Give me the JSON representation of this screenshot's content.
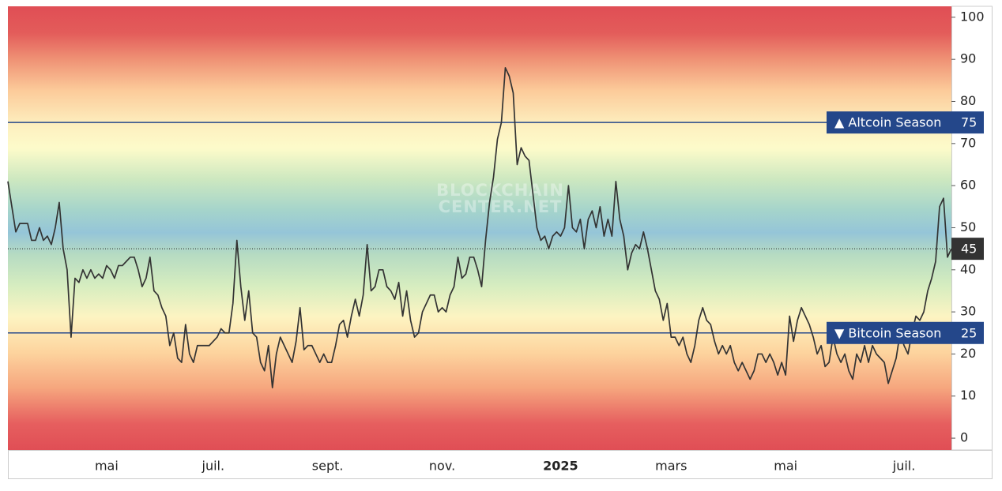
{
  "chart_data": {
    "type": "line",
    "watermark": [
      "BLOCKCHAIN",
      "CENTER.NET"
    ],
    "categories": [
      null,
      null,
      null,
      null,
      null,
      null,
      null,
      null,
      null,
      null,
      null,
      null,
      null,
      null,
      null,
      null,
      null,
      null,
      null,
      null,
      null,
      null,
      null,
      null,
      null,
      "mai",
      null,
      null,
      null,
      null,
      null,
      null,
      null,
      null,
      null,
      null,
      null,
      null,
      null,
      null,
      null,
      null,
      null,
      null,
      null,
      null,
      null,
      null,
      null,
      null,
      null,
      null,
      "juil.",
      null,
      null,
      null,
      null,
      null,
      null,
      null,
      null,
      null,
      null,
      null,
      null,
      null,
      null,
      null,
      null,
      null,
      null,
      null,
      null,
      null,
      null,
      null,
      null,
      null,
      null,
      null,
      null,
      "sept.",
      null,
      null,
      null,
      null,
      null,
      null,
      null,
      null,
      null,
      null,
      null,
      null,
      null,
      null,
      null,
      null,
      null,
      null,
      null,
      null,
      null,
      null,
      null,
      null,
      null,
      null,
      null,
      null,
      "nov.",
      null,
      null,
      null,
      null,
      null,
      null,
      null,
      null,
      null,
      null,
      null,
      null,
      null,
      null,
      null,
      null,
      null,
      null,
      null,
      null,
      null,
      null,
      null,
      null,
      null,
      null,
      null,
      null,
      null,
      "2025",
      null,
      null,
      null,
      null,
      null,
      null,
      null,
      null,
      null,
      null,
      null,
      null,
      null,
      null,
      null,
      null,
      null,
      null,
      null,
      null,
      null,
      null,
      null,
      null,
      null,
      null,
      null,
      "mars",
      null,
      null,
      null,
      null,
      null,
      null,
      null,
      null,
      null,
      null,
      null,
      null,
      null,
      null,
      null,
      null,
      null,
      null,
      null,
      null,
      null,
      null,
      null,
      null,
      null,
      null,
      null,
      null,
      "mai",
      null,
      null,
      null,
      null,
      null,
      null,
      null,
      null,
      null,
      null,
      null,
      null,
      null,
      null,
      null,
      null,
      null,
      null,
      null,
      null,
      null,
      null,
      null,
      null,
      null,
      null,
      null,
      null,
      null,
      "juil.",
      null,
      null,
      null,
      null,
      null,
      null,
      null,
      null,
      null,
      null,
      null,
      null
    ],
    "values": [
      61,
      55,
      49,
      51,
      51,
      51,
      47,
      47,
      50,
      47,
      48,
      46,
      50,
      56,
      45,
      40,
      24,
      38,
      37,
      40,
      38,
      40,
      38,
      39,
      38,
      41,
      40,
      38,
      41,
      41,
      42,
      43,
      43,
      40,
      36,
      38,
      43,
      35,
      34,
      31,
      29,
      22,
      25,
      19,
      18,
      27,
      20,
      18,
      22,
      22,
      22,
      22,
      23,
      24,
      26,
      25,
      25,
      32,
      47,
      36,
      28,
      35,
      25,
      24,
      18,
      16,
      22,
      12,
      20,
      24,
      22,
      20,
      18,
      23,
      31,
      21,
      22,
      22,
      20,
      18,
      20,
      18,
      18,
      22,
      27,
      28,
      24,
      29,
      33,
      29,
      34,
      46,
      35,
      36,
      40,
      40,
      36,
      35,
      33,
      37,
      29,
      35,
      28,
      24,
      25,
      30,
      32,
      34,
      34,
      30,
      31,
      30,
      34,
      36,
      43,
      38,
      39,
      43,
      43,
      40,
      36,
      47,
      56,
      62,
      71,
      75,
      88,
      86,
      82,
      65,
      69,
      67,
      66,
      58,
      50,
      47,
      48,
      45,
      48,
      49,
      48,
      50,
      60,
      50,
      49,
      52,
      45,
      52,
      54,
      50,
      55,
      48,
      52,
      48,
      61,
      52,
      48,
      40,
      44,
      46,
      45,
      49,
      45,
      40,
      35,
      33,
      28,
      32,
      24,
      24,
      22,
      24,
      20,
      18,
      22,
      28,
      31,
      28,
      27,
      23,
      20,
      22,
      20,
      22,
      18,
      16,
      18,
      16,
      14,
      16,
      20,
      20,
      18,
      20,
      18,
      15,
      18,
      15,
      29,
      23,
      28,
      31,
      29,
      27,
      24,
      20,
      22,
      17,
      18,
      24,
      20,
      18,
      20,
      16,
      14,
      20,
      18,
      22,
      18,
      22,
      20,
      19,
      18,
      13,
      16,
      19,
      25,
      22,
      20,
      25,
      29,
      28,
      30,
      35,
      38,
      42,
      55,
      57,
      43,
      45
    ],
    "color": "#333333",
    "ylim": [
      -2.8,
      102.6
    ],
    "yticks": [
      0,
      10,
      20,
      30,
      40,
      50,
      60,
      70,
      80,
      90,
      100
    ],
    "reference_lines": [
      {
        "label": "▲ Altcoin Season",
        "value": 75,
        "color": "#24478a"
      },
      {
        "label": "▼ Bitcoin Season",
        "value": 25,
        "color": "#24478a"
      }
    ]
  }
}
